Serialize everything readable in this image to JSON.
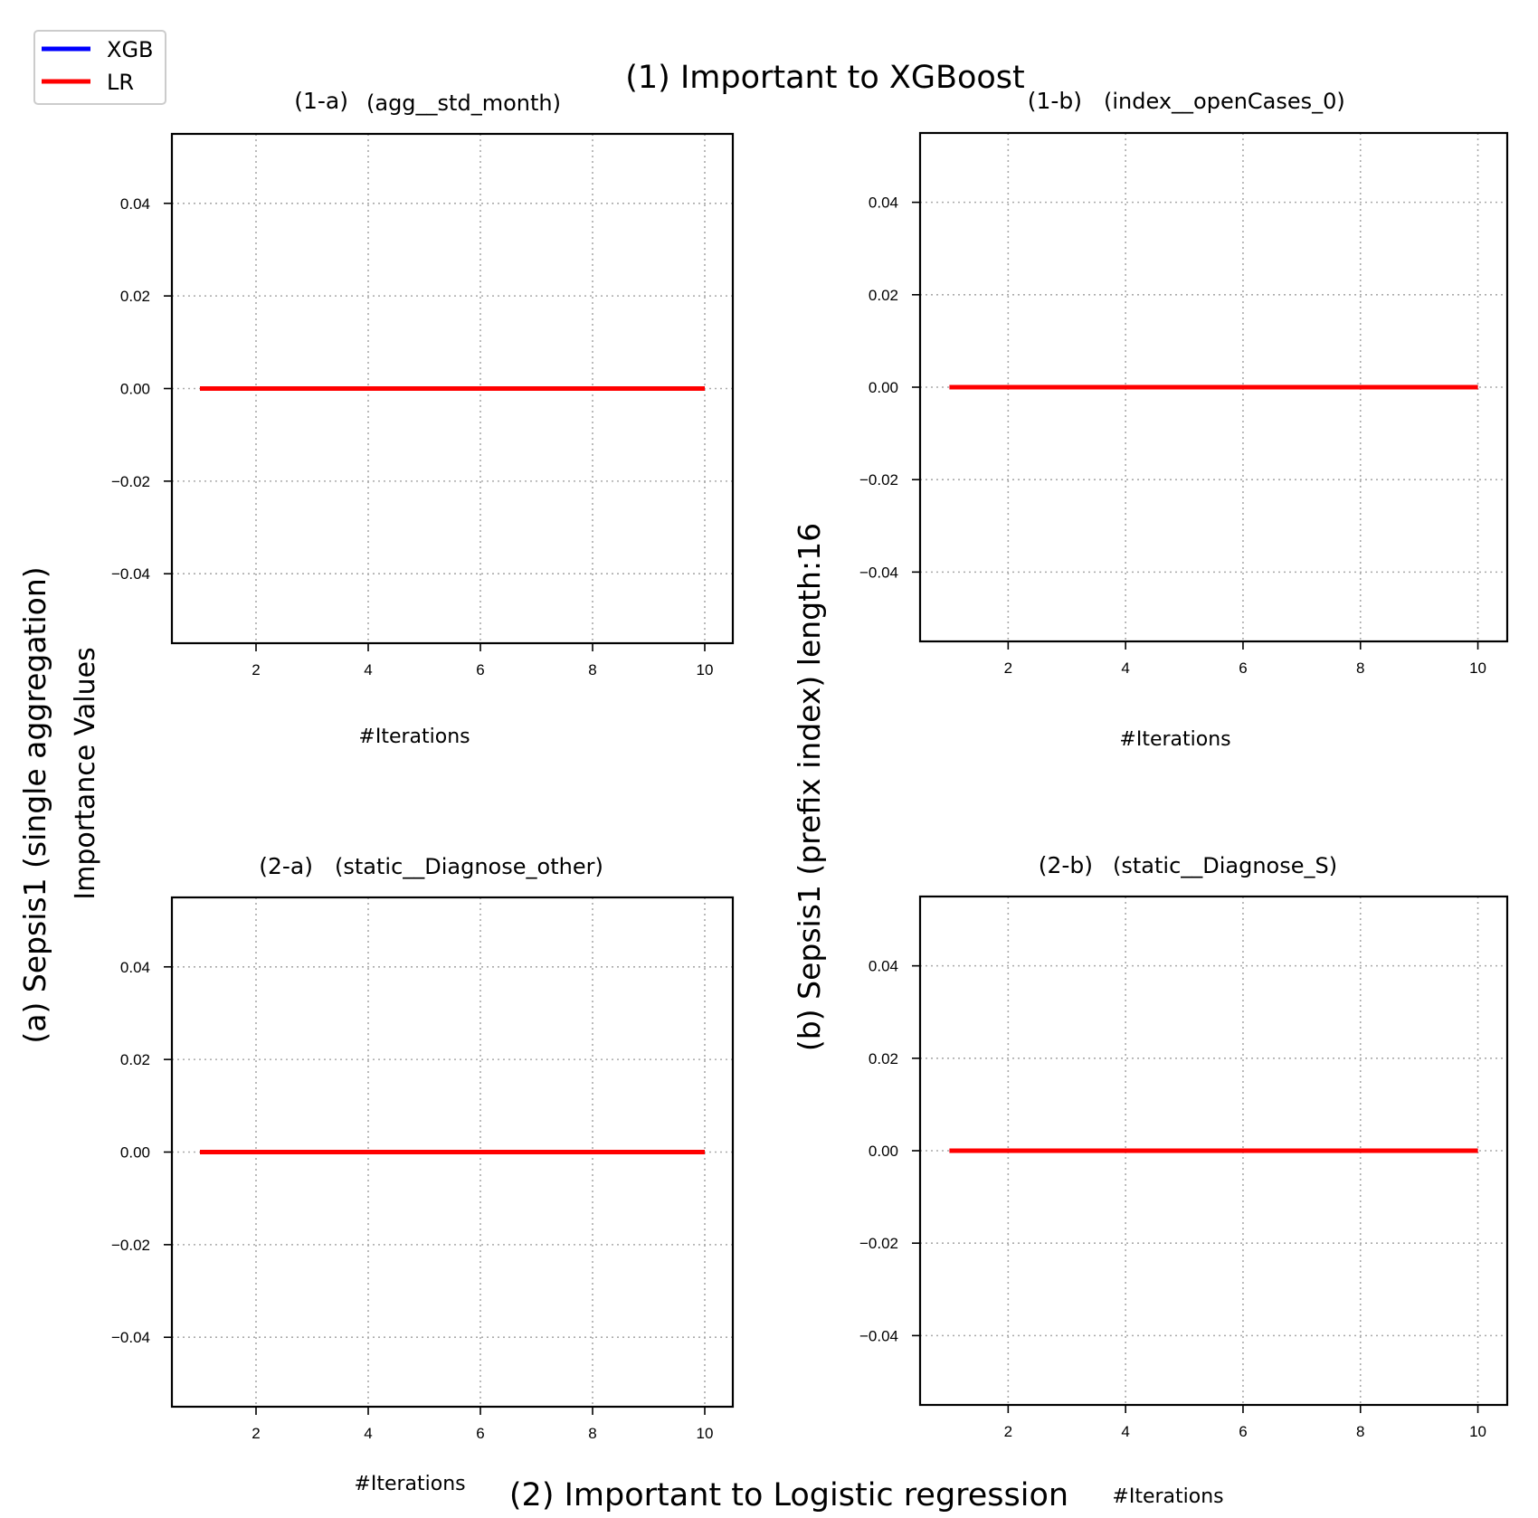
{
  "figure": {
    "top_title": "(1)  Important to XGBoost",
    "bottom_title": "(2) Important to Logistic regression",
    "left_group_label": "(a)  Sepsis1 (single aggregation)",
    "left_axis_label": "Importance Values",
    "middle_group_label": "(b)  Sepsis1 (prefix index) length:16"
  },
  "legend": {
    "items": [
      {
        "label": "XGB",
        "color": "#0000ff"
      },
      {
        "label": "LR",
        "color": "#ff0000"
      }
    ]
  },
  "chart_data": [
    {
      "type": "line",
      "panel_id": "(1-a)",
      "feature": "(agg__std_month)",
      "xlabel": "#Iterations",
      "ylabel": "",
      "xlim": [
        0.5,
        10.5
      ],
      "ylim": [
        -0.055,
        0.055
      ],
      "xticks": [
        "2",
        "4",
        "6",
        "8",
        "10"
      ],
      "yticks": [
        "0.04",
        "0.02",
        "0.00",
        "−0.02",
        "−0.04"
      ],
      "grid": true,
      "x": [
        1,
        2,
        3,
        4,
        5,
        6,
        7,
        8,
        9,
        10
      ],
      "series": [
        {
          "name": "XGB",
          "color": "#0000ff",
          "values": [
            0,
            0,
            0,
            0,
            0,
            0,
            0,
            0,
            0,
            0
          ]
        },
        {
          "name": "LR",
          "color": "#ff0000",
          "values": [
            0,
            0,
            0,
            0,
            0,
            0,
            0,
            0,
            0,
            0
          ]
        }
      ]
    },
    {
      "type": "line",
      "panel_id": "(1-b)",
      "feature": "(index__openCases_0)",
      "xlabel": "#Iterations",
      "ylabel": "",
      "xlim": [
        0.5,
        10.5
      ],
      "ylim": [
        -0.055,
        0.055
      ],
      "xticks": [
        "2",
        "4",
        "6",
        "8",
        "10"
      ],
      "yticks": [
        "0.04",
        "0.02",
        "0.00",
        "−0.02",
        "−0.04"
      ],
      "grid": true,
      "x": [
        1,
        2,
        3,
        4,
        5,
        6,
        7,
        8,
        9,
        10
      ],
      "series": [
        {
          "name": "XGB",
          "color": "#0000ff",
          "values": [
            0,
            0,
            0,
            0,
            0,
            0,
            0,
            0,
            0,
            0
          ]
        },
        {
          "name": "LR",
          "color": "#ff0000",
          "values": [
            0,
            0,
            0,
            0,
            0,
            0,
            0,
            0,
            0,
            0
          ]
        }
      ]
    },
    {
      "type": "line",
      "panel_id": "(2-a)",
      "feature": "(static__Diagnose_other)",
      "xlabel": "#Iterations",
      "ylabel": "",
      "xlim": [
        0.5,
        10.5
      ],
      "ylim": [
        -0.055,
        0.055
      ],
      "xticks": [
        "2",
        "4",
        "6",
        "8",
        "10"
      ],
      "yticks": [
        "0.04",
        "0.02",
        "0.00",
        "−0.02",
        "−0.04"
      ],
      "grid": true,
      "x": [
        1,
        2,
        3,
        4,
        5,
        6,
        7,
        8,
        9,
        10
      ],
      "series": [
        {
          "name": "XGB",
          "color": "#0000ff",
          "values": [
            0,
            0,
            0,
            0,
            0,
            0,
            0,
            0,
            0,
            0
          ]
        },
        {
          "name": "LR",
          "color": "#ff0000",
          "values": [
            0,
            0,
            0,
            0,
            0,
            0,
            0,
            0,
            0,
            0
          ]
        }
      ]
    },
    {
      "type": "line",
      "panel_id": "(2-b)",
      "feature": "(static__Diagnose_S)",
      "xlabel": "#Iterations",
      "ylabel": "",
      "xlim": [
        0.5,
        10.5
      ],
      "ylim": [
        -0.055,
        0.055
      ],
      "xticks": [
        "2",
        "4",
        "6",
        "8",
        "10"
      ],
      "yticks": [
        "0.04",
        "0.02",
        "0.00",
        "−0.02",
        "−0.04"
      ],
      "grid": true,
      "x": [
        1,
        2,
        3,
        4,
        5,
        6,
        7,
        8,
        9,
        10
      ],
      "series": [
        {
          "name": "XGB",
          "color": "#0000ff",
          "values": [
            0,
            0,
            0,
            0,
            0,
            0,
            0,
            0,
            0,
            0
          ]
        },
        {
          "name": "LR",
          "color": "#ff0000",
          "values": [
            0,
            0,
            0,
            0,
            0,
            0,
            0,
            0,
            0,
            0
          ]
        }
      ]
    }
  ]
}
